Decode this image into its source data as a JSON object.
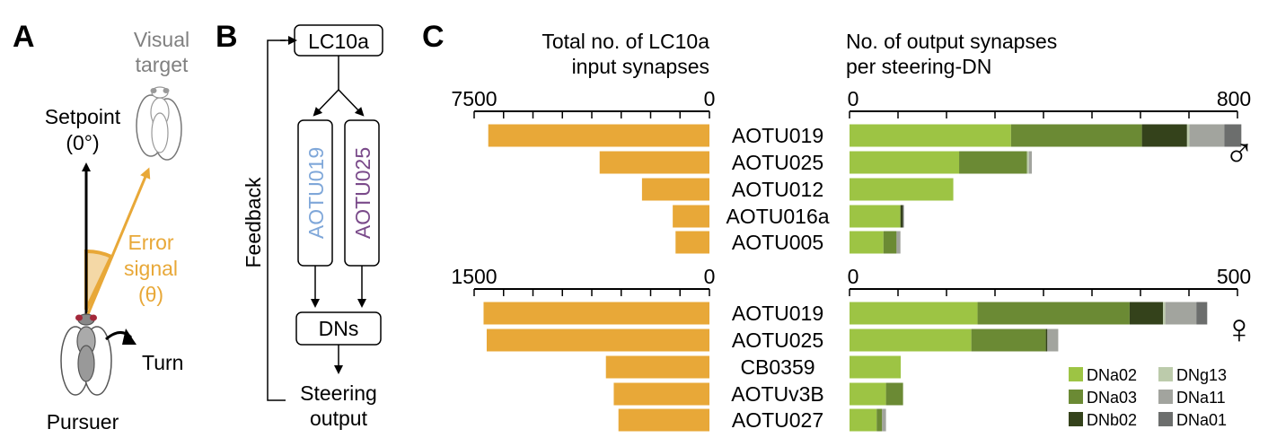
{
  "panel_a": {
    "letter": "A",
    "target_label_1": "Visual",
    "target_label_2": "target",
    "setpoint_label_1": "Setpoint",
    "setpoint_label_2": "(0°)",
    "error_label_1": "Error",
    "error_label_2": "signal",
    "error_label_3": "(θ)",
    "turn_label": "Turn",
    "pursuer_label": "Pursuer"
  },
  "panel_b": {
    "letter": "B",
    "lc10a_label": "LC10a",
    "aotu019_label": "AOTU019",
    "aotu025_label": "AOTU025",
    "dns_label": "DNs",
    "feedback_label": "Feedback",
    "steering_label_1": "Steering",
    "steering_label_2": "output"
  },
  "panel_c": {
    "letter": "C",
    "left_title_1": "Total no. of LC10a",
    "left_title_2": "input synapses",
    "right_title_1": "No. of output synapses",
    "right_title_2": "per steering-DN",
    "male_symbol": "♂",
    "female_symbol": "♀"
  },
  "colors": {
    "orange": "#e8a838",
    "aotu019": "#7fa7d9",
    "aotu025": "#7a4a8a",
    "DNa02": "#9dc444",
    "DNa03": "#6b8a34",
    "DNb02": "#34421b",
    "DNg13": "#bccbab",
    "DNa11": "#a2a49e",
    "DNa01": "#6c6e6d"
  },
  "chart_data": [
    {
      "type": "bar",
      "sex": "male",
      "left_axis": {
        "ticks": [
          "7500",
          "0"
        ],
        "range": [
          0,
          7500
        ]
      },
      "right_axis": {
        "ticks": [
          "0",
          "800"
        ],
        "range": [
          0,
          800
        ]
      },
      "categories": [
        "AOTU019",
        "AOTU025",
        "AOTU012",
        "AOTU016a",
        "AOTU005"
      ],
      "lc10a_input": [
        7050,
        3500,
        2150,
        1170,
        1080
      ],
      "series": [
        {
          "name": "DNa02",
          "values": [
            333,
            226,
            214,
            105,
            70
          ]
        },
        {
          "name": "DNa03",
          "values": [
            270,
            140,
            0,
            0,
            27
          ]
        },
        {
          "name": "DNb02",
          "values": [
            93,
            0,
            0,
            5,
            0
          ]
        },
        {
          "name": "DNg13",
          "values": [
            5,
            4,
            0,
            0,
            0
          ]
        },
        {
          "name": "DNa11",
          "values": [
            72,
            6,
            0,
            0,
            8
          ]
        },
        {
          "name": "DNa01",
          "values": [
            35,
            0,
            0,
            2,
            0
          ]
        }
      ]
    },
    {
      "type": "bar",
      "sex": "female",
      "left_axis": {
        "ticks": [
          "1500",
          "0"
        ],
        "range": [
          0,
          1500
        ]
      },
      "right_axis": {
        "ticks": [
          "0",
          "500"
        ],
        "range": [
          0,
          500
        ]
      },
      "categories": [
        "AOTU019",
        "AOTU025",
        "CB0359",
        "AOTUv3B",
        "AOTU027"
      ],
      "lc10a_input": [
        1440,
        1420,
        660,
        610,
        580
      ],
      "series": [
        {
          "name": "DNa02",
          "values": [
            165,
            157,
            66,
            47,
            35
          ]
        },
        {
          "name": "DNa03",
          "values": [
            196,
            96,
            0,
            22,
            7
          ]
        },
        {
          "name": "DNb02",
          "values": [
            43,
            2,
            0,
            0,
            0
          ]
        },
        {
          "name": "DNg13",
          "values": [
            3,
            0,
            0,
            0,
            0
          ]
        },
        {
          "name": "DNa11",
          "values": [
            40,
            14,
            0,
            0,
            5
          ]
        },
        {
          "name": "DNa01",
          "values": [
            14,
            0,
            0,
            0,
            0
          ]
        }
      ]
    }
  ]
}
